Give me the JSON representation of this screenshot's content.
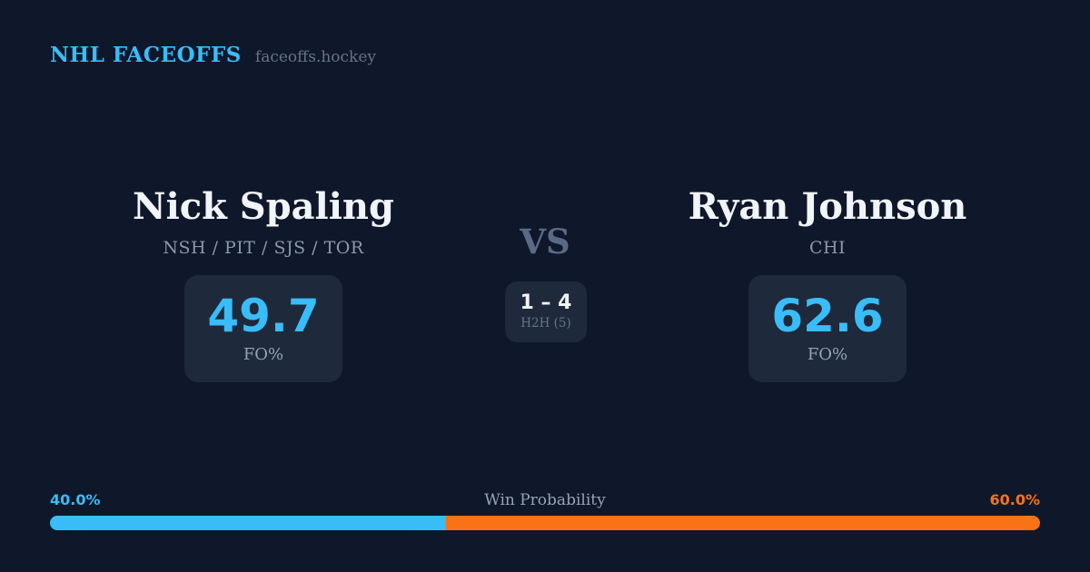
{
  "header": {
    "brand": "NHL FACEOFFS",
    "site": "faceoffs.hockey"
  },
  "matchup": {
    "player_left": {
      "name": "Nick Spaling",
      "teams": "NSH / PIT / SJS / TOR",
      "stat_value": "49.7",
      "stat_label": "FO%"
    },
    "center": {
      "vs_label": "VS",
      "h2h_score": "1 – 4",
      "h2h_label": "H2H (5)"
    },
    "player_right": {
      "name": "Ryan Johnson",
      "teams": "CHI",
      "stat_value": "62.6",
      "stat_label": "FO%"
    }
  },
  "win_probability": {
    "title": "Win Probability",
    "left_label": "40.0%",
    "right_label": "60.0%",
    "left_value": 40.0,
    "right_value": 60.0
  },
  "colors": {
    "background": "#0f172a",
    "card": "#1e293b",
    "accent_blue": "#38bdf8",
    "accent_orange": "#f97316",
    "text_primary": "#f1f5f9",
    "text_muted": "#94a3b8",
    "vs_color": "#5a6a85"
  }
}
